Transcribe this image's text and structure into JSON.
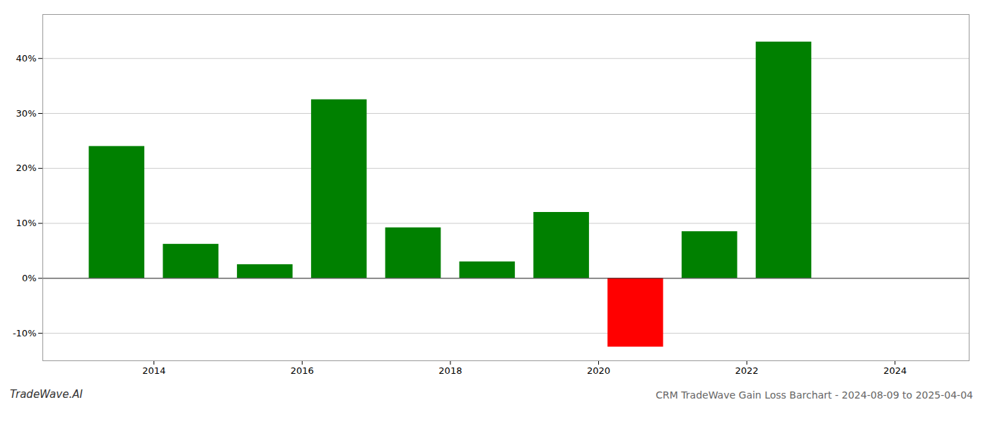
{
  "chart_data": {
    "type": "bar",
    "title": "CRM TradeWave Gain Loss Barchart - 2024-08-09 to 2025-04-04",
    "annotations": [
      "TradeWave.AI"
    ],
    "x": [
      2013.5,
      2014.5,
      2015.5,
      2016.5,
      2017.5,
      2018.5,
      2019.5,
      2020.5,
      2021.5,
      2022.5
    ],
    "values": [
      24.0,
      6.2,
      2.5,
      32.5,
      9.2,
      3.0,
      12.0,
      -12.5,
      8.5,
      43.0
    ],
    "colors": [
      "#008000",
      "#008000",
      "#008000",
      "#008000",
      "#008000",
      "#008000",
      "#008000",
      "#ff0000",
      "#008000",
      "#008000"
    ],
    "xlim": [
      2012.5,
      2025.0
    ],
    "xticks": [
      2014,
      2016,
      2018,
      2020,
      2022,
      2024
    ],
    "ylim": [
      -15,
      48
    ],
    "yticks": [
      {
        "value": -10,
        "label": "-10%"
      },
      {
        "value": 0,
        "label": "0%"
      },
      {
        "value": 10,
        "label": "10%"
      },
      {
        "value": 20,
        "label": "20%"
      },
      {
        "value": 30,
        "label": "30%"
      },
      {
        "value": 40,
        "label": "40%"
      }
    ],
    "grid": true
  }
}
